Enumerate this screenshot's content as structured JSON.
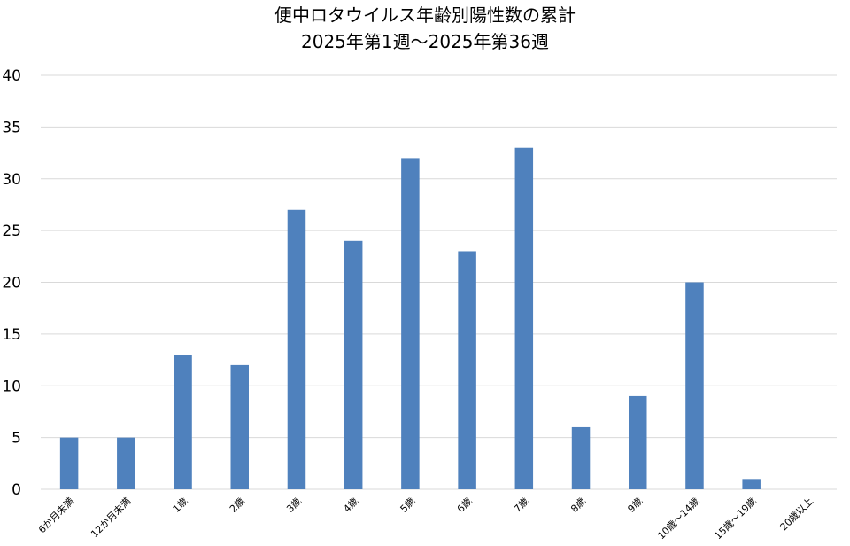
{
  "chart_data": {
    "type": "bar",
    "title": "便中ロタウイルス年齢別陽性数の累計",
    "subtitle": "2025年第1週～2025年第36週",
    "xlabel": "",
    "ylabel": "",
    "categories": [
      "6か月未満",
      "12か月未満",
      "1歳",
      "2歳",
      "3歳",
      "4歳",
      "5歳",
      "6歳",
      "7歳",
      "8歳",
      "9歳",
      "10歳～14歳",
      "15歳～19歳",
      "20歳以上"
    ],
    "values": [
      5,
      5,
      13,
      12,
      27,
      24,
      32,
      23,
      33,
      6,
      9,
      20,
      1,
      0
    ],
    "ylim": [
      0,
      40
    ],
    "yticks": [
      0,
      5,
      10,
      15,
      20,
      25,
      30,
      35,
      40
    ],
    "grid": true,
    "legend": "none",
    "bar_color": "#4f81bd",
    "grid_color": "#d9d9d9"
  }
}
